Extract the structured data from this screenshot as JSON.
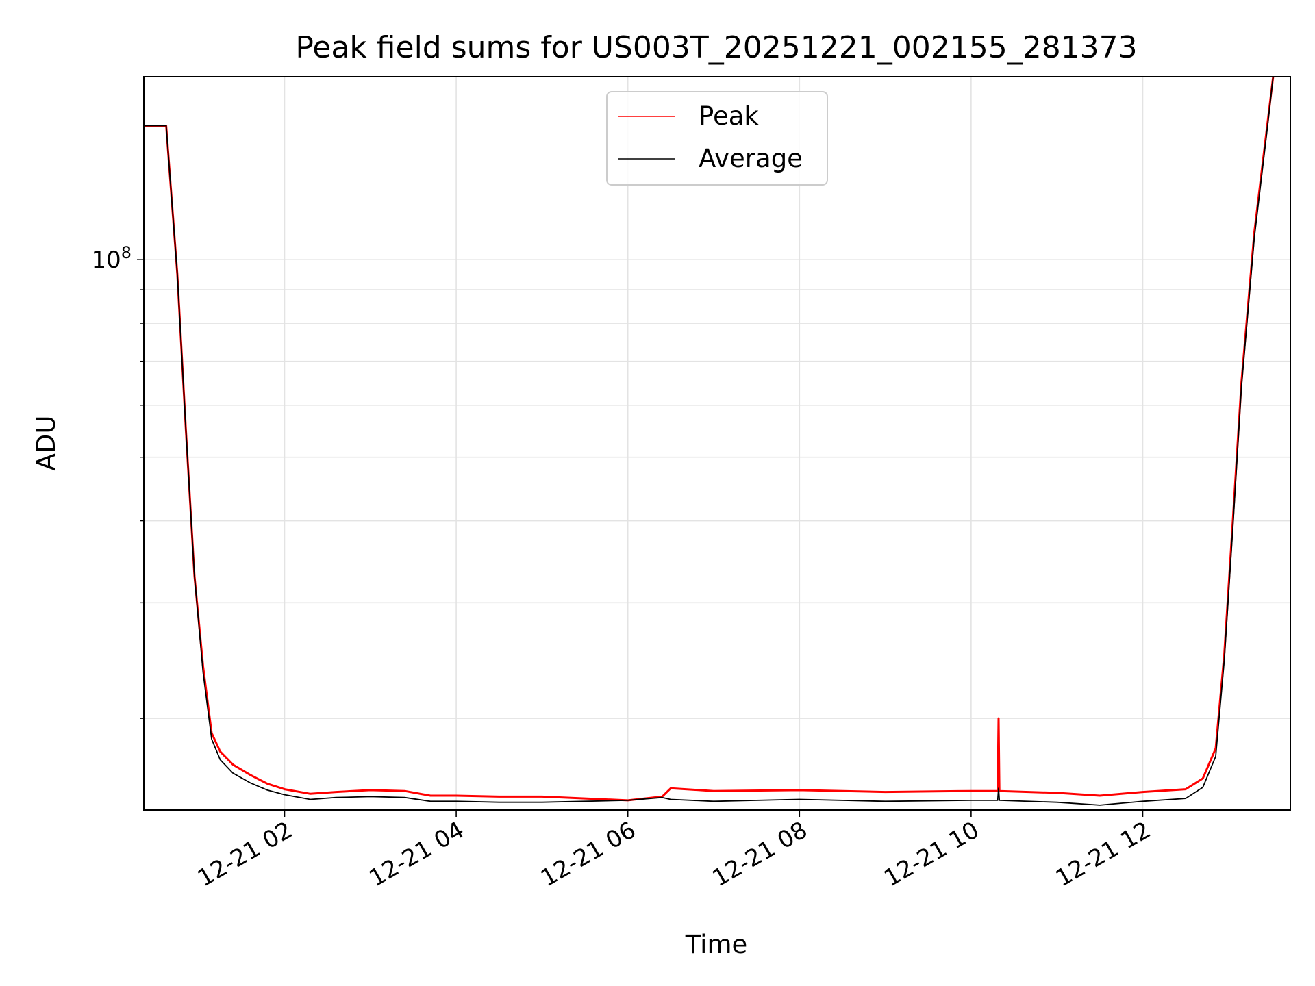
{
  "chart_data": {
    "type": "line",
    "title": "Peak field sums for US003T_20251221_002155_281373",
    "xlabel": "Time",
    "ylabel": "ADU",
    "yscale": "log",
    "ylim": [
      14500000,
      190000000
    ],
    "xlim_hours": [
      0.36,
      13.72
    ],
    "grid": true,
    "legend": {
      "position": "top-center",
      "entries": [
        {
          "name": "Peak",
          "color": "#ff0000"
        },
        {
          "name": "Average",
          "color": "#000000"
        }
      ]
    },
    "x_ticks": [
      {
        "hours": 2,
        "label": "12-21 02"
      },
      {
        "hours": 4,
        "label": "12-21 04"
      },
      {
        "hours": 6,
        "label": "12-21 06"
      },
      {
        "hours": 8,
        "label": "12-21 08"
      },
      {
        "hours": 10,
        "label": "12-21 10"
      },
      {
        "hours": 12,
        "label": "12-21 12"
      }
    ],
    "y_major_tick": {
      "value": 100000000,
      "label_base": "10",
      "label_exp": "8"
    },
    "y_minor_ticks": [
      20000000,
      30000000,
      40000000,
      50000000,
      60000000,
      70000000,
      80000000,
      90000000
    ],
    "series": [
      {
        "name": "Peak",
        "color": "#ff0000",
        "x_hours": [
          0.36,
          0.55,
          0.62,
          0.75,
          0.85,
          0.95,
          1.05,
          1.15,
          1.25,
          1.4,
          1.6,
          1.8,
          2.0,
          2.3,
          2.6,
          3.0,
          3.4,
          3.7,
          4.0,
          4.5,
          5.0,
          5.5,
          6.0,
          6.4,
          6.5,
          7.0,
          8.0,
          9.0,
          10.0,
          10.31,
          10.32,
          10.33,
          11.0,
          11.5,
          12.0,
          12.5,
          12.7,
          12.85,
          12.95,
          13.05,
          13.15,
          13.3,
          13.45,
          13.52
        ],
        "values": [
          160000000,
          160000000,
          160000000,
          95000000,
          55000000,
          33000000,
          24000000,
          19000000,
          17800000,
          17000000,
          16400000,
          15900000,
          15600000,
          15350000,
          15450000,
          15550000,
          15500000,
          15250000,
          15250000,
          15200000,
          15200000,
          15100000,
          15000000,
          15200000,
          15650000,
          15500000,
          15550000,
          15450000,
          15500000,
          15500000,
          20000000,
          15500000,
          15400000,
          15250000,
          15450000,
          15600000,
          16200000,
          18000000,
          25000000,
          40000000,
          65000000,
          110000000,
          160000000,
          190000000
        ]
      },
      {
        "name": "Average",
        "color": "#000000",
        "x_hours": [
          0.36,
          0.55,
          0.62,
          0.75,
          0.85,
          0.95,
          1.05,
          1.15,
          1.25,
          1.4,
          1.6,
          1.8,
          2.0,
          2.3,
          2.6,
          3.0,
          3.4,
          3.7,
          4.0,
          4.5,
          5.0,
          5.5,
          6.0,
          6.4,
          6.5,
          7.0,
          8.0,
          9.0,
          10.0,
          10.31,
          10.32,
          10.33,
          11.0,
          11.5,
          12.0,
          12.5,
          12.7,
          12.85,
          12.95,
          13.05,
          13.15,
          13.3,
          13.45,
          13.52
        ],
        "values": [
          160000000,
          160000000,
          160000000,
          95000000,
          55000000,
          33000000,
          23500000,
          18600000,
          17300000,
          16500000,
          15950000,
          15550000,
          15300000,
          15050000,
          15150000,
          15200000,
          15150000,
          14950000,
          14950000,
          14900000,
          14900000,
          14950000,
          15000000,
          15150000,
          15050000,
          14950000,
          15050000,
          14950000,
          15000000,
          15000000,
          15650000,
          15000000,
          14900000,
          14750000,
          14950000,
          15100000,
          15700000,
          17500000,
          24500000,
          39000000,
          64000000,
          108000000,
          158000000,
          190000000
        ]
      }
    ]
  }
}
